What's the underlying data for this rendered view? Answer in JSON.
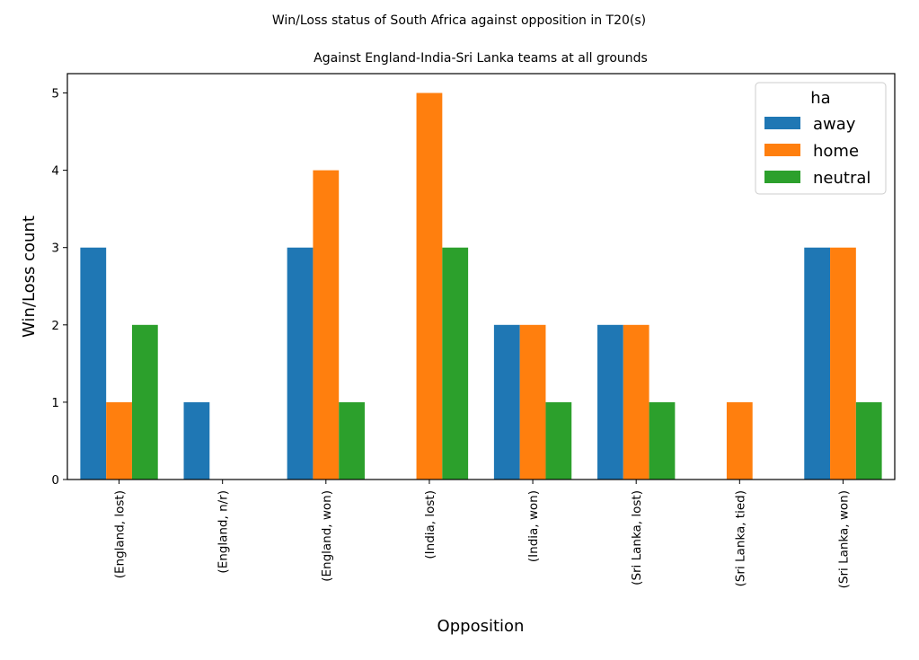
{
  "chart_data": {
    "type": "bar",
    "suptitle": "Win/Loss status of South Africa against opposition in T20(s)",
    "title": "Against England-India-Sri Lanka teams at all grounds",
    "xlabel": "Opposition",
    "ylabel": "Win/Loss count",
    "ylim": [
      0,
      5.25
    ],
    "yticks": [
      "0",
      "1",
      "2",
      "3",
      "4",
      "5"
    ],
    "categories": [
      "(England, lost)",
      "(England, n/r)",
      "(England, won)",
      "(India, lost)",
      "(India, won)",
      "(Sri Lanka, lost)",
      "(Sri Lanka, tied)",
      "(Sri Lanka, won)"
    ],
    "legend": {
      "title": "ha",
      "position": "top-right"
    },
    "series": [
      {
        "name": "away",
        "color": "#1f77b4",
        "values": [
          3,
          1,
          3,
          0,
          2,
          2,
          0,
          3
        ]
      },
      {
        "name": "home",
        "color": "#ff7f0e",
        "values": [
          1,
          0,
          4,
          5,
          2,
          2,
          1,
          3
        ]
      },
      {
        "name": "neutral",
        "color": "#2ca02c",
        "values": [
          2,
          0,
          1,
          3,
          1,
          1,
          0,
          1
        ]
      }
    ],
    "grid": false
  }
}
